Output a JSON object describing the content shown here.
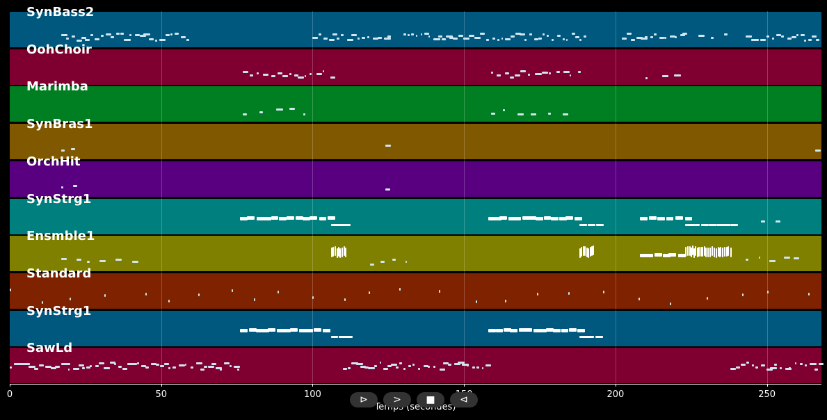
{
  "tracks": [
    {
      "name": "SynBass2",
      "color": "#00587f"
    },
    {
      "name": "OohChoir",
      "color": "#7f0030"
    },
    {
      "name": "Marimba",
      "color": "#007f22"
    },
    {
      "name": "SynBras1",
      "color": "#7f5800"
    },
    {
      "name": "OrchHit",
      "color": "#58007f"
    },
    {
      "name": "SynStrg1",
      "color": "#007f7f"
    },
    {
      "name": "Ensmble1",
      "color": "#7f7f00"
    },
    {
      "name": "Standard",
      "color": "#7f2200"
    },
    {
      "name": "SynStrg1",
      "color": "#00587f"
    },
    {
      "name": "SawLd",
      "color": "#7f0030"
    }
  ],
  "axis": {
    "xlabel": "Temps (secondes)",
    "ticks": [
      "0",
      "50",
      "100",
      "150",
      "200",
      "250"
    ],
    "tick_values": [
      0,
      50,
      100,
      150,
      200,
      250
    ],
    "range": [
      0,
      268
    ]
  },
  "controls": {
    "play_icon": "play-icon",
    "forward_icon": "forward-icon",
    "stop_icon": "stop-icon",
    "rewind_icon": "rewind-icon",
    "play_glyph": "⊳",
    "forward_glyph": ">",
    "stop_glyph": "■",
    "rewind_glyph": "⊲"
  }
}
